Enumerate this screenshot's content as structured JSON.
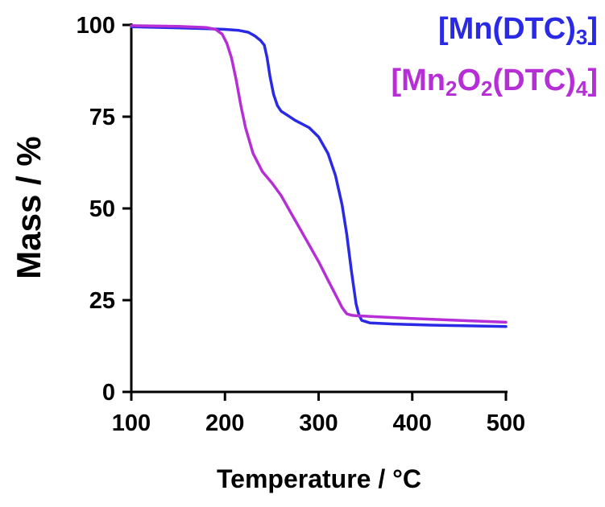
{
  "chart_data": {
    "type": "line",
    "xlabel": "Temperature / °C",
    "ylabel": "Mass / %",
    "xlim": [
      100,
      500
    ],
    "ylim": [
      0,
      100
    ],
    "xticks": [
      100,
      200,
      300,
      400,
      500
    ],
    "yticks": [
      0,
      25,
      50,
      75,
      100
    ],
    "grid": false,
    "legend_position": "top-right",
    "series": [
      {
        "name": "[Mn(DTC)3]",
        "label_parts": [
          [
            "[Mn(DTC)",
            false
          ],
          [
            "3",
            true
          ],
          [
            "]",
            false
          ]
        ],
        "color": "#2a2ae6",
        "x": [
          100,
          150,
          180,
          200,
          215,
          225,
          232,
          238,
          242,
          245,
          248,
          252,
          256,
          260,
          266,
          275,
          290,
          300,
          310,
          318,
          325,
          330,
          335,
          340,
          343,
          346,
          355,
          380,
          420,
          460,
          500
        ],
        "y": [
          99.5,
          99.2,
          99,
          98.8,
          98.5,
          98,
          97,
          95.8,
          94.5,
          91,
          86,
          81,
          78,
          76.5,
          75.5,
          74,
          72,
          69.5,
          65,
          59,
          51,
          43,
          33,
          24,
          21,
          19.5,
          18.8,
          18.5,
          18.2,
          18,
          17.8
        ]
      },
      {
        "name": "[Mn2O2(DTC)4]",
        "label_parts": [
          [
            "[Mn",
            false
          ],
          [
            "2",
            true
          ],
          [
            "O",
            false
          ],
          [
            "2",
            true
          ],
          [
            "(DTC)",
            false
          ],
          [
            "4",
            true
          ],
          [
            "]",
            false
          ]
        ],
        "color": "#b52ed6",
        "x": [
          100,
          150,
          180,
          190,
          197,
          202,
          207,
          212,
          217,
          222,
          230,
          240,
          250,
          260,
          270,
          280,
          290,
          300,
          310,
          320,
          325,
          330,
          335,
          340,
          360,
          400,
          450,
          500
        ],
        "y": [
          99.8,
          99.6,
          99.3,
          98.8,
          97.5,
          95,
          91,
          85,
          78,
          72,
          65,
          60,
          57,
          53.5,
          49,
          44.5,
          40,
          35.5,
          30.5,
          25.5,
          23,
          21.3,
          20.9,
          20.8,
          20.5,
          20,
          19.5,
          19
        ]
      }
    ]
  }
}
